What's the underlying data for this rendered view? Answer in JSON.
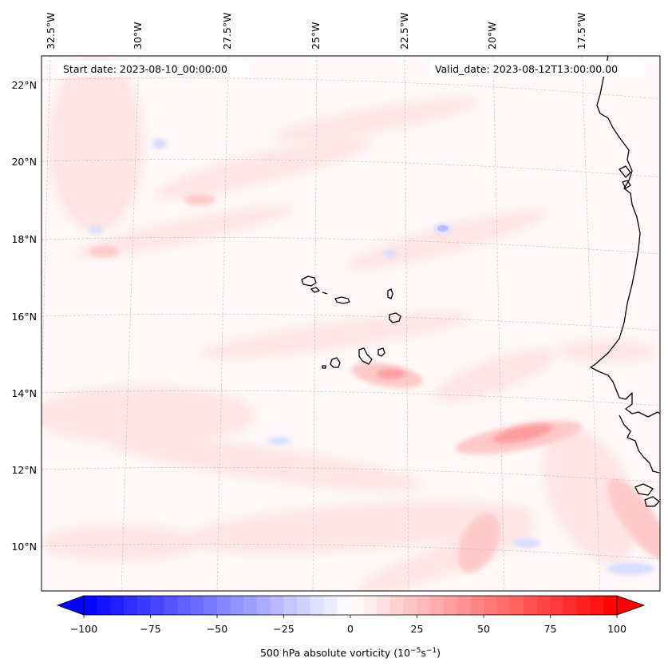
{
  "map": {
    "lon_ticks": [
      "32.5°W",
      "30°W",
      "27.5°W",
      "25°W",
      "22.5°W",
      "20°W",
      "17.5°W"
    ],
    "lat_ticks": [
      "22°N",
      "20°N",
      "18°N",
      "16°N",
      "14°N",
      "12°N",
      "10°N"
    ],
    "start_date": "Start date: 2023-08-10_00:00:00",
    "valid_date": "Valid_date: 2023-08-12T13:00:00.00"
  },
  "colorbar": {
    "ticks": [
      "−100",
      "−75",
      "−50",
      "−25",
      "0",
      "25",
      "50",
      "75",
      "100"
    ],
    "min": -100,
    "max": 100,
    "levels": 41,
    "label": "500 hPa absolute vorticity (10",
    "label_exp1": "−5",
    "label_mid": "s",
    "label_exp2": "−1",
    "label_end": ")"
  },
  "colors": {
    "negative": "#0000ff",
    "neutral": "#ffffff",
    "positive": "#ff0000",
    "coast": "#000000",
    "grid": "#b0b0b0"
  }
}
